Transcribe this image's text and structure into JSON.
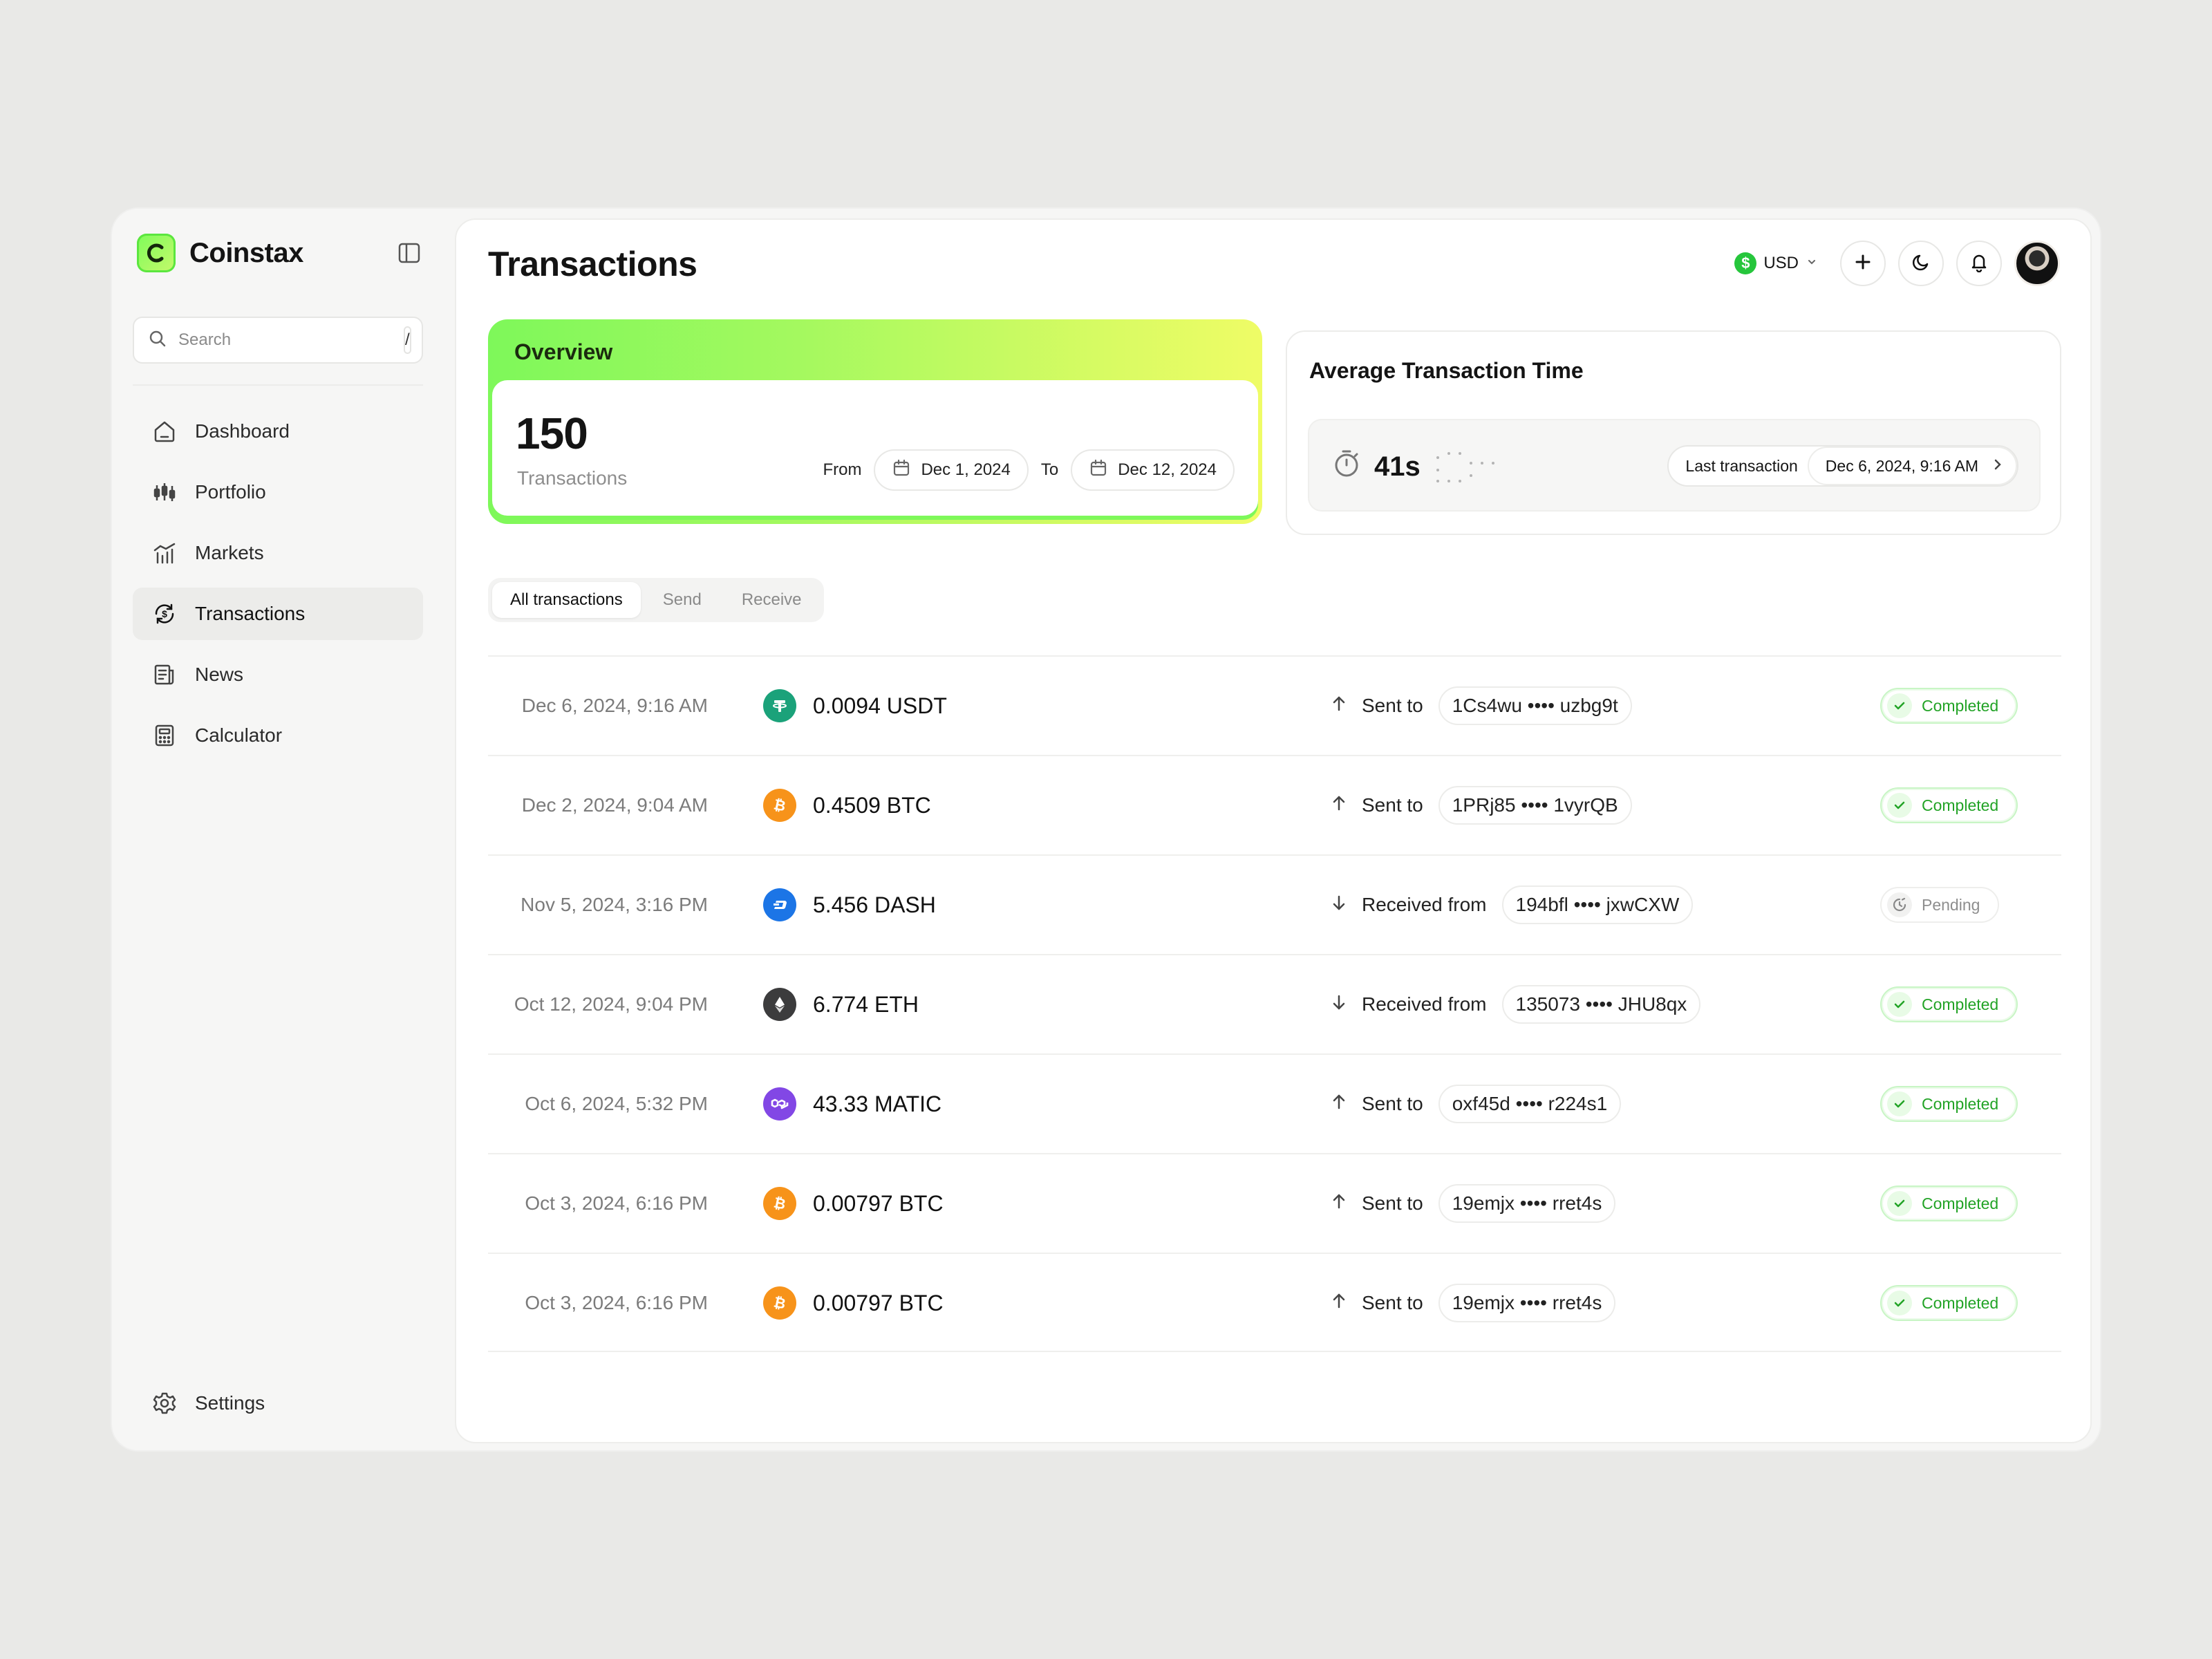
{
  "app": {
    "name": "Coinstax"
  },
  "search": {
    "placeholder": "Search",
    "shortcut": "/"
  },
  "nav": {
    "items": [
      {
        "label": "Dashboard",
        "icon": "home-icon"
      },
      {
        "label": "Portfolio",
        "icon": "candlestick-icon"
      },
      {
        "label": "Markets",
        "icon": "chart-icon"
      },
      {
        "label": "Transactions",
        "icon": "exchange-icon",
        "active": true
      },
      {
        "label": "News",
        "icon": "news-icon"
      },
      {
        "label": "Calculator",
        "icon": "calculator-icon"
      }
    ],
    "settings": "Settings"
  },
  "header": {
    "title": "Transactions",
    "currency": "USD",
    "currency_symbol": "$"
  },
  "overview": {
    "title": "Overview",
    "count": "150",
    "count_label": "Transactions",
    "from_label": "From",
    "from_date": "Dec 1, 2024",
    "to_label": "To",
    "to_date": "Dec 12, 2024"
  },
  "avg_time": {
    "title": "Average Transaction Time",
    "value": "41s",
    "last_label": "Last transaction",
    "last_date": "Dec 6, 2024, 9:16 AM"
  },
  "tabs": [
    "All transactions",
    "Send",
    "Receive"
  ],
  "transactions": [
    {
      "date": "Dec 6, 2024, 9:16 AM",
      "amount": "0.0094 USDT",
      "coin": "usdt",
      "direction": "Sent to",
      "dir": "up",
      "address": "1Cs4wu •••• uzbg9t",
      "status": "Completed"
    },
    {
      "date": "Dec 2, 2024, 9:04 AM",
      "amount": "0.4509 BTC",
      "coin": "btc",
      "direction": "Sent to",
      "dir": "up",
      "address": "1PRj85 •••• 1vyrQB",
      "status": "Completed"
    },
    {
      "date": "Nov 5, 2024, 3:16 PM",
      "amount": "5.456 DASH",
      "coin": "dash",
      "direction": "Received from",
      "dir": "down",
      "address": "194bfl •••• jxwCXW",
      "status": "Pending"
    },
    {
      "date": "Oct 12, 2024, 9:04 PM",
      "amount": "6.774 ETH",
      "coin": "eth",
      "direction": "Received from",
      "dir": "down",
      "address": "135073 •••• JHU8qx",
      "status": "Completed"
    },
    {
      "date": "Oct 6, 2024, 5:32 PM",
      "amount": "43.33 MATIC",
      "coin": "matic",
      "direction": "Sent to",
      "dir": "up",
      "address": "oxf45d •••• r224s1",
      "status": "Completed"
    },
    {
      "date": "Oct 3, 2024, 6:16 PM",
      "amount": "0.00797 BTC",
      "coin": "btc",
      "direction": "Sent to",
      "dir": "up",
      "address": "19emjx •••• rret4s",
      "status": "Completed"
    },
    {
      "date": "Oct 3, 2024, 6:16 PM",
      "amount": "0.00797 BTC",
      "coin": "btc",
      "direction": "Sent to",
      "dir": "up",
      "address": "19emjx •••• rret4s",
      "status": "Completed"
    }
  ],
  "colors": {
    "accent": "#7ef85a",
    "completed": "#22a326",
    "usdt": "#1ba27a",
    "btc": "#f7931a",
    "dash": "#1c75e6",
    "eth": "#3c3c3d",
    "matic": "#8247e5"
  }
}
